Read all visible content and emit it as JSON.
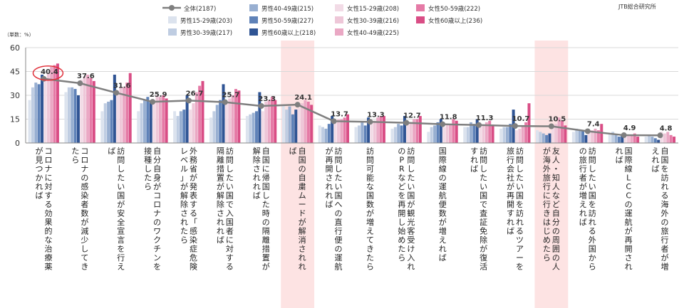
{
  "source": "JTB総合研究所",
  "unit_label": "（単数：%）",
  "chart_data": {
    "type": "bar",
    "ylim": [
      0,
      60
    ],
    "yticks": [
      0,
      15,
      30,
      45,
      60
    ],
    "grid": true,
    "legend_position": "top",
    "highlight_category_indices": [
      7,
      14
    ],
    "highlight_color": "#fde3e3",
    "circled_category_index": 0,
    "categories": [
      "コロナに対する効果的な治療薬が見つかれば",
      "コロナの感染者数が減少してきたら",
      "訪問したい国が安全宣言を行えば",
      "自分自身がコロナのワクチンを接種したら",
      "外務省が発表する「感染症危険レベル」が解除されたら",
      "訪問したい国で入国者に対する隔離措置が解除されれば",
      "自国に帰国した時の隔離措置が解除されれば",
      "自国の自粛ムードが解消されれば",
      "訪問したい国への直行便の運航が再開されれば",
      "訪問可能な国数が増えてきたら",
      "訪問したい国が観光客受け入れのPRなどを再開し始めたら",
      "国際線の運航便数が増えれば",
      "訪問したい国で査証免除が復活すれば",
      "訪問したい国を訪れるツアーを旅行会社が再開すれば",
      "友人・知人など自分の周囲の人が海外旅行に行きはじめたら",
      "訪問したい国を訪れる外国からの旅行者が増えれば",
      "国際線LCCの運航が再開されれば",
      "自国を訪れる海外の旅行者が増えれば"
    ],
    "line_series": {
      "name": "全体",
      "n": "(2187)",
      "color": "#7f7f7f",
      "values": [
        40.4,
        37.6,
        31.6,
        25.9,
        26.7,
        25.7,
        23.3,
        24.1,
        13.7,
        13.3,
        12.7,
        11.8,
        11.3,
        10.7,
        10.5,
        7.4,
        4.9,
        4.8
      ],
      "labels": [
        "40.4",
        "37.6",
        "31.6",
        "25.9",
        "26.7",
        "25.7",
        "23.3",
        "24.1",
        "13.7",
        "13.3",
        "12.7",
        "11.8",
        "11.3",
        "10.7",
        "10.5",
        "7.4",
        "4.9",
        "4.8"
      ]
    },
    "series": [
      {
        "name": "男性15-29歳",
        "n": "(203)",
        "color": "#dce3ee",
        "values": [
          27,
          32,
          20,
          20,
          20,
          16,
          17,
          24,
          11,
          10,
          9,
          7,
          10,
          9,
          8,
          7,
          6,
          4
        ]
      },
      {
        "name": "男性30-39歳",
        "n": "(217)",
        "color": "#bfcde2",
        "values": [
          35,
          35,
          25,
          25,
          17,
          20,
          18,
          21,
          10,
          11,
          10,
          10,
          10,
          10,
          7,
          9,
          7,
          5
        ]
      },
      {
        "name": "男性40-49歳",
        "n": "(215)",
        "color": "#98afd1",
        "values": [
          38,
          35,
          26,
          27,
          20,
          24,
          19,
          23,
          9,
          13,
          12,
          11,
          13,
          10,
          6,
          8,
          5,
          4
        ]
      },
      {
        "name": "男性50-59歳",
        "n": "(227)",
        "color": "#5f82b8",
        "values": [
          37,
          34,
          27,
          29,
          21,
          27,
          20,
          18,
          12,
          11,
          11,
          13,
          12,
          12,
          5,
          8,
          4,
          3
        ]
      },
      {
        "name": "男性60歳以上",
        "n": "(218)",
        "color": "#2f5494",
        "values": [
          43,
          30,
          43,
          26,
          30,
          37,
          32,
          21,
          17,
          16,
          17,
          15,
          15,
          21,
          6,
          5,
          5,
          2
        ]
      },
      {
        "name": "女性15-29歳",
        "n": "(208)",
        "color": "#f2dbe6",
        "values": [
          40,
          40,
          33,
          27,
          21,
          25,
          20,
          22,
          13,
          13,
          12,
          10,
          10,
          8,
          11,
          7,
          5,
          7
        ]
      },
      {
        "name": "女性30-39歳",
        "n": "(216)",
        "color": "#eec7d8",
        "values": [
          44,
          42,
          35,
          30,
          25,
          28,
          26,
          25,
          15,
          14,
          13,
          12,
          11,
          9,
          12,
          8,
          5,
          6
        ]
      },
      {
        "name": "女性40-49歳",
        "n": "(225)",
        "color": "#eaa8c4",
        "values": [
          48,
          43,
          35,
          29,
          32,
          30,
          27,
          27,
          15,
          16,
          15,
          12,
          13,
          11,
          16,
          9,
          5,
          7
        ]
      },
      {
        "name": "女性50-59歳",
        "n": "(222)",
        "color": "#e57aa6",
        "values": [
          49,
          41,
          38,
          30,
          36,
          34,
          29,
          26,
          16,
          17,
          15,
          15,
          14,
          13,
          14,
          8,
          6,
          5
        ]
      },
      {
        "name": "女性60歳以上",
        "n": "(236)",
        "color": "#d94d85",
        "values": [
          50,
          39,
          44,
          28,
          39,
          33,
          27,
          24,
          18,
          17,
          17,
          14,
          11,
          25,
          11,
          12,
          4,
          4
        ]
      }
    ]
  }
}
